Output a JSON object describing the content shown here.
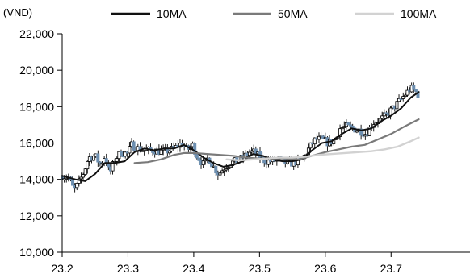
{
  "chart_data": {
    "type": "candlestick",
    "y_unit": "(VND)",
    "ylim": [
      10000,
      22000
    ],
    "xlim": [
      0,
      6.2
    ],
    "y_ticks": [
      "10,000",
      "12,000",
      "14,000",
      "16,000",
      "18,000",
      "20,000",
      "22,000"
    ],
    "x_ticks": [
      "23.2",
      "23.3",
      "23.4",
      "23.5",
      "23.6",
      "23.7"
    ],
    "legend_position": "top",
    "colors": {
      "candle_up": "#ffffff",
      "candle_down": "#6d8fb0",
      "candle_outline": "#000000",
      "ma10": "#111111",
      "ma50": "#7a7a7a",
      "ma100": "#d2d2d2",
      "axis": "#000000"
    },
    "price_path": [
      [
        0.0,
        14200
      ],
      [
        0.1,
        14100
      ],
      [
        0.18,
        13400
      ],
      [
        0.25,
        13800
      ],
      [
        0.33,
        14400
      ],
      [
        0.4,
        15200
      ],
      [
        0.5,
        15300
      ],
      [
        0.58,
        14800
      ],
      [
        0.65,
        15300
      ],
      [
        0.72,
        14300
      ],
      [
        0.8,
        15100
      ],
      [
        0.9,
        15500
      ],
      [
        1.0,
        15400
      ],
      [
        1.05,
        15900
      ],
      [
        1.15,
        15700
      ],
      [
        1.25,
        15600
      ],
      [
        1.4,
        15600
      ],
      [
        1.55,
        15500
      ],
      [
        1.7,
        15700
      ],
      [
        1.82,
        16000
      ],
      [
        1.9,
        15600
      ],
      [
        1.98,
        15900
      ],
      [
        2.05,
        15300
      ],
      [
        2.15,
        14800
      ],
      [
        2.22,
        15200
      ],
      [
        2.3,
        14700
      ],
      [
        2.38,
        14300
      ],
      [
        2.45,
        14600
      ],
      [
        2.55,
        14900
      ],
      [
        2.65,
        15000
      ],
      [
        2.75,
        15200
      ],
      [
        2.85,
        15500
      ],
      [
        2.93,
        15500
      ],
      [
        3.0,
        15200
      ],
      [
        3.1,
        15000
      ],
      [
        3.2,
        15000
      ],
      [
        3.3,
        15100
      ],
      [
        3.4,
        14900
      ],
      [
        3.5,
        14900
      ],
      [
        3.58,
        15000
      ],
      [
        3.65,
        15100
      ],
      [
        3.75,
        15700
      ],
      [
        3.85,
        16200
      ],
      [
        3.95,
        16200
      ],
      [
        4.05,
        16000
      ],
      [
        4.15,
        16200
      ],
      [
        4.22,
        16800
      ],
      [
        4.32,
        16900
      ],
      [
        4.42,
        16800
      ],
      [
        4.52,
        16700
      ],
      [
        4.62,
        16500
      ],
      [
        4.72,
        17100
      ],
      [
        4.85,
        17300
      ],
      [
        4.97,
        17700
      ],
      [
        5.05,
        18000
      ],
      [
        5.15,
        18400
      ],
      [
        5.22,
        18700
      ],
      [
        5.3,
        19000
      ],
      [
        5.38,
        18800
      ],
      [
        5.42,
        18600
      ]
    ],
    "series": [
      {
        "name": "10MA",
        "points": [
          [
            0.0,
            14200
          ],
          [
            0.2,
            14000
          ],
          [
            0.35,
            13900
          ],
          [
            0.5,
            14300
          ],
          [
            0.65,
            14900
          ],
          [
            0.8,
            14900
          ],
          [
            0.95,
            15000
          ],
          [
            1.1,
            15500
          ],
          [
            1.25,
            15700
          ],
          [
            1.4,
            15600
          ],
          [
            1.55,
            15700
          ],
          [
            1.7,
            15700
          ],
          [
            1.85,
            15900
          ],
          [
            2.0,
            15600
          ],
          [
            2.15,
            15200
          ],
          [
            2.3,
            14900
          ],
          [
            2.45,
            14700
          ],
          [
            2.6,
            14800
          ],
          [
            2.75,
            15000
          ],
          [
            2.9,
            15400
          ],
          [
            3.05,
            15300
          ],
          [
            3.2,
            15100
          ],
          [
            3.35,
            15000
          ],
          [
            3.5,
            15000
          ],
          [
            3.65,
            15100
          ],
          [
            3.8,
            15600
          ],
          [
            3.95,
            16000
          ],
          [
            4.1,
            16100
          ],
          [
            4.25,
            16500
          ],
          [
            4.4,
            16800
          ],
          [
            4.55,
            16700
          ],
          [
            4.7,
            16800
          ],
          [
            4.85,
            17200
          ],
          [
            5.0,
            17500
          ],
          [
            5.15,
            17900
          ],
          [
            5.3,
            18500
          ],
          [
            5.42,
            18800
          ]
        ]
      },
      {
        "name": "50MA",
        "points": [
          [
            1.1,
            14900
          ],
          [
            1.3,
            14950
          ],
          [
            1.5,
            15100
          ],
          [
            1.7,
            15350
          ],
          [
            1.85,
            15450
          ],
          [
            2.0,
            15450
          ],
          [
            2.2,
            15400
          ],
          [
            2.4,
            15350
          ],
          [
            2.6,
            15300
          ],
          [
            2.8,
            15200
          ],
          [
            3.0,
            15150
          ],
          [
            3.2,
            15150
          ],
          [
            3.4,
            15150
          ],
          [
            3.6,
            15100
          ],
          [
            3.8,
            15300
          ],
          [
            4.0,
            15500
          ],
          [
            4.2,
            15650
          ],
          [
            4.4,
            15800
          ],
          [
            4.6,
            15900
          ],
          [
            4.8,
            16200
          ],
          [
            5.0,
            16500
          ],
          [
            5.2,
            16900
          ],
          [
            5.42,
            17300
          ]
        ]
      },
      {
        "name": "100MA",
        "points": [
          [
            2.5,
            15100
          ],
          [
            2.7,
            15050
          ],
          [
            2.9,
            15100
          ],
          [
            3.1,
            15150
          ],
          [
            3.3,
            15200
          ],
          [
            3.5,
            15200
          ],
          [
            3.7,
            15250
          ],
          [
            3.9,
            15350
          ],
          [
            4.1,
            15400
          ],
          [
            4.3,
            15450
          ],
          [
            4.5,
            15500
          ],
          [
            4.7,
            15550
          ],
          [
            4.9,
            15650
          ],
          [
            5.1,
            15800
          ],
          [
            5.3,
            16100
          ],
          [
            5.42,
            16300
          ]
        ]
      }
    ]
  }
}
